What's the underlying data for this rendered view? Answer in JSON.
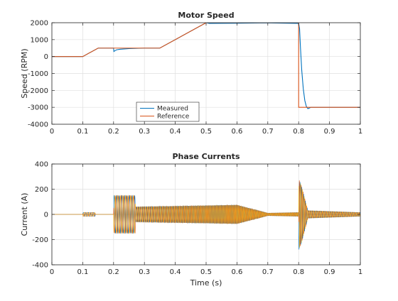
{
  "chart_data": [
    {
      "type": "line",
      "title": "Motor Speed",
      "xlabel": "",
      "ylabel": "Speed (RPM)",
      "xlim": [
        0,
        1
      ],
      "ylim": [
        -4000,
        2000
      ],
      "xticks": [
        0,
        0.1,
        0.2,
        0.3,
        0.4,
        0.5,
        0.6,
        0.7,
        0.8,
        0.9,
        1
      ],
      "yticks": [
        -4000,
        -3000,
        -2000,
        -1000,
        0,
        1000,
        2000
      ],
      "xtick_labels": [
        "0",
        "0.1",
        "0.2",
        "0.3",
        "0.4",
        "0.5",
        "0.6",
        "0.7",
        "0.8",
        "0.9",
        "1"
      ],
      "ytick_labels": [
        "-4000",
        "-3000",
        "-2000",
        "-1000",
        "0",
        "1000",
        "2000"
      ],
      "grid": true,
      "legend": {
        "position": "bottom-center"
      },
      "series": [
        {
          "name": "Measured",
          "color": "#0072BD",
          "x": [
            0,
            0.1,
            0.15,
            0.2,
            0.201,
            0.205,
            0.21,
            0.22,
            0.25,
            0.3,
            0.35,
            0.5,
            0.51,
            0.6,
            0.7,
            0.8,
            0.803,
            0.806,
            0.81,
            0.815,
            0.82,
            0.825,
            0.83,
            0.835,
            0.84,
            1
          ],
          "y": [
            0,
            0,
            500,
            500,
            300,
            350,
            400,
            430,
            470,
            500,
            500,
            2000,
            1960,
            1970,
            1990,
            1960,
            1650,
            500,
            -800,
            -1900,
            -2600,
            -2950,
            -3080,
            -3040,
            -3000,
            -3000
          ]
        },
        {
          "name": "Reference",
          "color": "#D95319",
          "x": [
            0,
            0.1,
            0.15,
            0.35,
            0.5,
            0.8,
            0.8001,
            1
          ],
          "y": [
            0,
            0,
            500,
            500,
            2000,
            2000,
            -3000,
            -3000
          ]
        }
      ]
    },
    {
      "type": "line",
      "title": "Phase Currents",
      "xlabel": "Time (s)",
      "ylabel": "Current (A)",
      "xlim": [
        0,
        1
      ],
      "ylim": [
        -400,
        400
      ],
      "xticks": [
        0,
        0.1,
        0.2,
        0.3,
        0.4,
        0.5,
        0.6,
        0.7,
        0.8,
        0.9,
        1
      ],
      "yticks": [
        -400,
        -200,
        0,
        200,
        400
      ],
      "xtick_labels": [
        "0",
        "0.1",
        "0.2",
        "0.3",
        "0.4",
        "0.5",
        "0.6",
        "0.7",
        "0.8",
        "0.9",
        "1"
      ],
      "ytick_labels": [
        "-400",
        "-200",
        "0",
        "200",
        "400"
      ],
      "grid": true,
      "series": [
        {
          "color": "#0072BD",
          "envelope": {
            "x": [
              0,
              0.1,
              0.101,
              0.14,
              0.141,
              0.2,
              0.201,
              0.27,
              0.271,
              0.5,
              0.6,
              0.7,
              0.8,
              0.801,
              0.81,
              0.83,
              1
            ],
            "y": [
              0,
              0,
              15,
              15,
              0,
              0,
              150,
              150,
              60,
              70,
              75,
              10,
              15,
              280,
              220,
              30,
              15
            ]
          }
        },
        {
          "color": "#D95319",
          "envelope": {
            "x": [
              0,
              0.1,
              0.101,
              0.14,
              0.141,
              0.2,
              0.201,
              0.27,
              0.271,
              0.5,
              0.6,
              0.7,
              0.8,
              0.801,
              0.81,
              0.83,
              1
            ],
            "y": [
              0,
              0,
              15,
              15,
              0,
              0,
              150,
              150,
              60,
              70,
              75,
              10,
              15,
              280,
              220,
              30,
              15
            ]
          }
        },
        {
          "color": "#EDB120",
          "envelope": {
            "x": [
              0,
              0.1,
              0.101,
              0.14,
              0.141,
              0.2,
              0.201,
              0.27,
              0.271,
              0.5,
              0.6,
              0.7,
              0.8,
              0.801,
              0.81,
              0.83,
              1
            ],
            "y": [
              0,
              0,
              15,
              15,
              0,
              0,
              150,
              150,
              60,
              70,
              75,
              10,
              15,
              280,
              220,
              30,
              15
            ]
          }
        }
      ]
    }
  ]
}
